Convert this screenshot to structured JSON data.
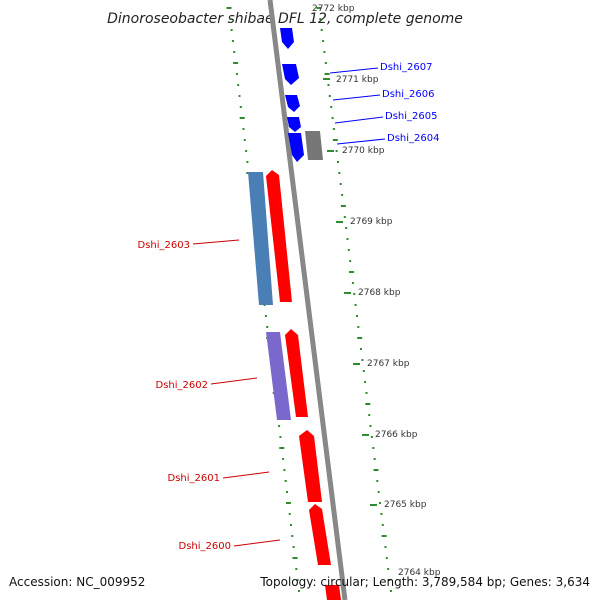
{
  "title": "Dinoroseobacter shibae DFL 12, complete genome",
  "footer": {
    "accession": "Accession: NC_009952",
    "summary": "Topology: circular; Length: 3,789,584 bp; Genes: 3,634"
  },
  "colors": {
    "reverse_strand": "#0000ff",
    "forward_cds": "#ff0000",
    "feature_steelblue": "#4a7fb5",
    "feature_purple": "#7b68cc",
    "feature_gray": "#777777",
    "backbone": "#888888",
    "tick": "#2e8b2e"
  },
  "ruler": {
    "labels": [
      "2772 kbp",
      "2771 kbp",
      "2770 kbp",
      "2769 kbp",
      "2768 kbp",
      "2767 kbp",
      "2766 kbp",
      "2765 kbp",
      "2764 kbp"
    ]
  },
  "gene_labels": {
    "dshi_2607": "Dshi_2607",
    "dshi_2606": "Dshi_2606",
    "dshi_2605": "Dshi_2605",
    "dshi_2604": "Dshi_2604",
    "dshi_2603": "Dshi_2603",
    "dshi_2602": "Dshi_2602",
    "dshi_2601": "Dshi_2601",
    "dshi_2600": "Dshi_2600"
  }
}
